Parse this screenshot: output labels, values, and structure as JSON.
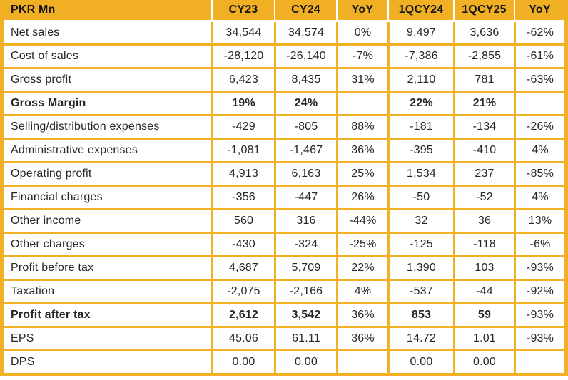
{
  "colors": {
    "gold": "#F1B024",
    "header_text": "#161616",
    "body_text": "#262626",
    "separator": "#FFFFFF",
    "cell_background": "#FFFFFF"
  },
  "chart_data": {
    "type": "table",
    "title": "PKR Mn",
    "columns": [
      "PKR Mn",
      "CY23",
      "CY24",
      "YoY",
      "1QCY24",
      "1QCY25",
      "YoY"
    ],
    "rows": [
      {
        "label": "Net sales",
        "values": [
          "34,544",
          "34,574",
          "0%",
          "9,497",
          "3,636",
          "-62%"
        ],
        "bold_label": false,
        "bold_cols": [
          false,
          false,
          false,
          false,
          false,
          false
        ]
      },
      {
        "label": "Cost of sales",
        "values": [
          "-28,120",
          "-26,140",
          "-7%",
          "-7,386",
          "-2,855",
          "-61%"
        ],
        "bold_label": false,
        "bold_cols": [
          false,
          false,
          false,
          false,
          false,
          false
        ]
      },
      {
        "label": "Gross profit",
        "values": [
          "6,423",
          "8,435",
          "31%",
          "2,110",
          "781",
          "-63%"
        ],
        "bold_label": false,
        "bold_cols": [
          false,
          false,
          false,
          false,
          false,
          false
        ]
      },
      {
        "label": "Gross Margin",
        "values": [
          "19%",
          "24%",
          "",
          "22%",
          "21%",
          ""
        ],
        "bold_label": true,
        "bold_cols": [
          true,
          true,
          true,
          true,
          true,
          true
        ]
      },
      {
        "label": "Selling/distribution expenses",
        "values": [
          "-429",
          "-805",
          "88%",
          "-181",
          "-134",
          "-26%"
        ],
        "bold_label": false,
        "bold_cols": [
          false,
          false,
          false,
          false,
          false,
          false
        ]
      },
      {
        "label": "Administrative expenses",
        "values": [
          "-1,081",
          "-1,467",
          "36%",
          "-395",
          "-410",
          "4%"
        ],
        "bold_label": false,
        "bold_cols": [
          false,
          false,
          false,
          false,
          false,
          false
        ]
      },
      {
        "label": "Operating profit",
        "values": [
          "4,913",
          "6,163",
          "25%",
          "1,534",
          "237",
          "-85%"
        ],
        "bold_label": false,
        "bold_cols": [
          false,
          false,
          false,
          false,
          false,
          false
        ]
      },
      {
        "label": "Financial charges",
        "values": [
          "-356",
          "-447",
          "26%",
          "-50",
          "-52",
          "4%"
        ],
        "bold_label": false,
        "bold_cols": [
          false,
          false,
          false,
          false,
          false,
          false
        ]
      },
      {
        "label": "Other income",
        "values": [
          "560",
          "316",
          "-44%",
          "32",
          "36",
          "13%"
        ],
        "bold_label": false,
        "bold_cols": [
          false,
          false,
          false,
          false,
          false,
          false
        ]
      },
      {
        "label": "Other charges",
        "values": [
          "-430",
          "-324",
          "-25%",
          "-125",
          "-118",
          "-6%"
        ],
        "bold_label": false,
        "bold_cols": [
          false,
          false,
          false,
          false,
          false,
          false
        ]
      },
      {
        "label": "Profit before tax",
        "values": [
          "4,687",
          "5,709",
          "22%",
          "1,390",
          "103",
          "-93%"
        ],
        "bold_label": false,
        "bold_cols": [
          false,
          false,
          false,
          false,
          false,
          false
        ]
      },
      {
        "label": "Taxation",
        "values": [
          "-2,075",
          "-2,166",
          "4%",
          "-537",
          "-44",
          "-92%"
        ],
        "bold_label": false,
        "bold_cols": [
          false,
          false,
          false,
          false,
          false,
          false
        ]
      },
      {
        "label": "Profit after tax",
        "values": [
          "2,612",
          "3,542",
          "36%",
          "853",
          "59",
          "-93%"
        ],
        "bold_label": true,
        "bold_cols": [
          true,
          true,
          false,
          true,
          true,
          false
        ]
      },
      {
        "label": "EPS",
        "values": [
          "45.06",
          "61.11",
          "36%",
          "14.72",
          "1.01",
          "-93%"
        ],
        "bold_label": false,
        "bold_cols": [
          false,
          false,
          false,
          false,
          false,
          false
        ]
      },
      {
        "label": "DPS",
        "values": [
          "0.00",
          "0.00",
          "",
          "0.00",
          "0.00",
          ""
        ],
        "bold_label": false,
        "bold_cols": [
          false,
          false,
          false,
          false,
          false,
          false
        ]
      }
    ]
  }
}
